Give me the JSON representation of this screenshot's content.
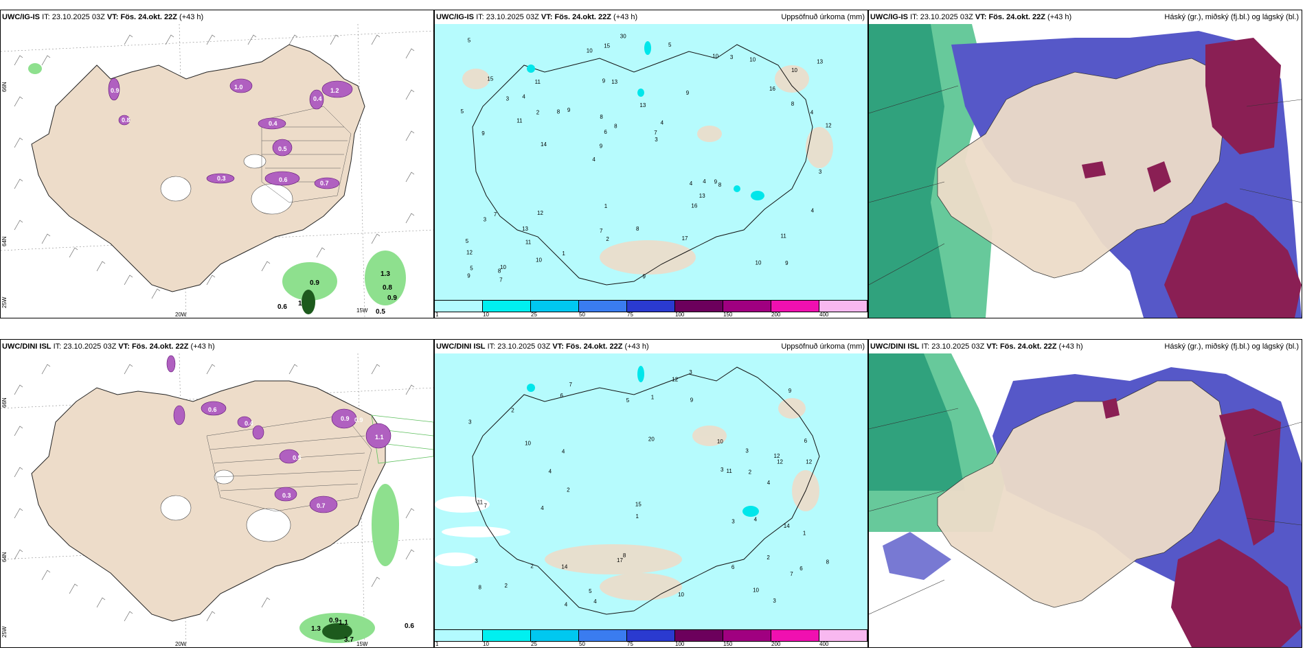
{
  "rows": [
    {
      "model": "UWC/IG-IS",
      "it_label": "IT:",
      "it_value": "23.10.2025 03Z",
      "vt_label": "VT:",
      "vt_value": "Fös. 24.okt. 22Z",
      "lead": "(+43 h)",
      "wind_values": [
        "0.9",
        "0.6",
        "1",
        "1.3",
        "0.8",
        "0.9",
        "0.5"
      ],
      "precip_values": [
        "9",
        "9",
        "10",
        "4",
        "9",
        "10",
        "9",
        "13",
        "7",
        "9",
        "12",
        "11",
        "13",
        "4",
        "8",
        "15",
        "15",
        "12",
        "4",
        "8",
        "9",
        "7",
        "6",
        "11",
        "10",
        "12",
        "10",
        "11",
        "9",
        "9",
        "8",
        "11",
        "16",
        "10",
        "4",
        "7",
        "5",
        "2",
        "3",
        "3",
        "16",
        "13",
        "13",
        "17",
        "13",
        "7",
        "9",
        "8",
        "10",
        "30",
        "14",
        "5",
        "4",
        "3",
        "8",
        "5",
        "10",
        "8",
        "4",
        "1",
        "1",
        "4",
        "2",
        "5",
        "5",
        "3",
        "3",
        "8"
      ],
      "ice_values": [
        "0.9",
        "1.2",
        "0.4",
        "0.6",
        "1.0",
        "0.3",
        "0.7",
        "0.5",
        "0.4",
        "0.8"
      ]
    },
    {
      "model": "UWC/DINI ISL",
      "it_label": "IT:",
      "it_value": "23.10.2025 03Z",
      "vt_label": "VT:",
      "vt_value": "Fös. 24.okt. 22Z",
      "lead": "(+43 h)",
      "wind_values": [
        "0.9",
        "1.1",
        "1.3",
        "0.6",
        "3.7"
      ],
      "precip_values": [
        "2",
        "6",
        "6",
        "20",
        "8",
        "7",
        "12",
        "14",
        "9",
        "10",
        "12",
        "3",
        "4",
        "4",
        "3",
        "2",
        "7",
        "6",
        "8",
        "12",
        "11",
        "7",
        "10",
        "3",
        "5",
        "17",
        "12",
        "9",
        "10",
        "8",
        "4",
        "6",
        "4",
        "15",
        "14",
        "10",
        "11",
        "5",
        "3",
        "2",
        "4",
        "2",
        "1",
        "4",
        "1",
        "3",
        "2",
        "3",
        "4",
        "3",
        "2",
        "1"
      ],
      "ice_values": [
        "0.9",
        "0.5",
        "0.7",
        "0.9",
        "0.4",
        "0.6",
        "1.1",
        "0.3"
      ]
    }
  ],
  "precip_title": "Uppsöfnuð úrkoma (mm)",
  "cloud_title": "Háský (gr.), miðský (fj.bl.) og lágský (bl.)",
  "colorbar": {
    "colors": [
      "#b3fbff",
      "#00f0f0",
      "#00c8f0",
      "#3a7cf0",
      "#2a3ad0",
      "#6c005c",
      "#a00080",
      "#f010b0",
      "#f8b8f0"
    ],
    "labels": [
      "1",
      "10",
      "25",
      "50",
      "75",
      "100",
      "150",
      "200",
      "400"
    ]
  },
  "axis_labels": {
    "lat_66": "66N",
    "lat_64": "64N",
    "lon_25": "25W",
    "lon_20": "20W",
    "lon_15": "15W"
  }
}
